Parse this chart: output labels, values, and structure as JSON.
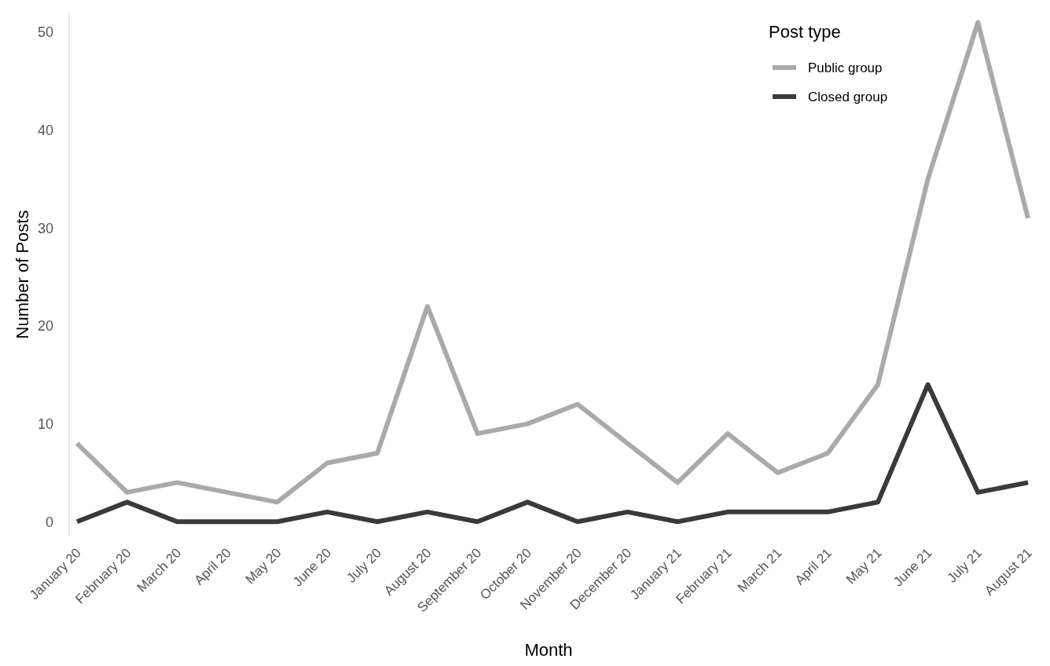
{
  "chart_data": {
    "type": "line",
    "xlabel": "Month",
    "ylabel": "Number of Posts",
    "legend_title": "Post type",
    "legend": "top right",
    "grid": false,
    "categories": [
      "January 20",
      "February 20",
      "March 20",
      "April 20",
      "May 20",
      "June 20",
      "July 20",
      "August 20",
      "September 20",
      "October 20",
      "November 20",
      "December 20",
      "January 21",
      "February 21",
      "March 21",
      "April 21",
      "May 21",
      "June 21",
      "July 21",
      "August 21"
    ],
    "series": [
      {
        "name": "Public group",
        "color": "#aaaaaa",
        "values": [
          8,
          3,
          4,
          3,
          2,
          6,
          7,
          22,
          9,
          10,
          12,
          8,
          4,
          9,
          5,
          7,
          14,
          35,
          51,
          31
        ]
      },
      {
        "name": "Closed group",
        "color": "#3a3a3a",
        "values": [
          0,
          2,
          0,
          0,
          0,
          1,
          0,
          1,
          0,
          2,
          0,
          1,
          0,
          1,
          1,
          1,
          2,
          14,
          3,
          4
        ]
      }
    ],
    "ylim": [
      -1.5,
      52
    ],
    "yticks": [
      0,
      10,
      20,
      30,
      40,
      50
    ]
  }
}
